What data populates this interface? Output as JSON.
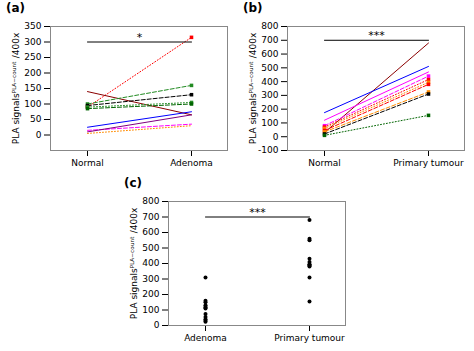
{
  "chart_data": [
    {
      "type": "line",
      "title": "(a)",
      "categories": [
        "Normal",
        "Adenoma"
      ],
      "ylabel": "PLA signalsᴾᴸᴬ⁻ᶜᵒᵘⁿᵗ /400x",
      "ylim": [
        -50,
        350
      ],
      "yticks": [
        0,
        50,
        100,
        150,
        200,
        250,
        300,
        350
      ],
      "annotations": [
        {
          "text": "*",
          "y": 300
        }
      ],
      "series": [
        {
          "color": "#ff0000",
          "line_style": "dotted",
          "marker": "square",
          "values": [
            90,
            315
          ]
        },
        {
          "color": "#8B0000",
          "line_style": "solid",
          "marker": "none",
          "values": [
            140,
            65
          ]
        },
        {
          "color": "#228B22",
          "line_style": "dashed",
          "marker": "square",
          "values": [
            100,
            160
          ]
        },
        {
          "color": "#000000",
          "line_style": "dashed",
          "marker": "square",
          "values": [
            95,
            130
          ]
        },
        {
          "color": "#228B22",
          "line_style": "dotted",
          "marker": "square",
          "values": [
            90,
            105
          ]
        },
        {
          "color": "#006400",
          "line_style": "dashed",
          "marker": "square",
          "values": [
            85,
            100
          ]
        },
        {
          "color": "#0000ff",
          "line_style": "solid",
          "marker": "none",
          "values": [
            25,
            75
          ]
        },
        {
          "color": "#ff00ff",
          "line_style": "dashed",
          "marker": "none",
          "values": [
            15,
            35
          ]
        },
        {
          "color": "#800080",
          "line_style": "solid",
          "marker": "none",
          "values": [
            10,
            65
          ]
        },
        {
          "color": "#ff8c00",
          "line_style": "dotted",
          "marker": "none",
          "values": [
            5,
            30
          ]
        }
      ]
    },
    {
      "type": "line",
      "title": "(b)",
      "categories": [
        "Normal",
        "Primary tumour"
      ],
      "ylabel": "PLA signalsᴾᴸᴬ⁻ᶜᵒᵘⁿᵗ /400x",
      "ylim": [
        -100,
        800
      ],
      "yticks": [
        -100,
        0,
        100,
        200,
        300,
        400,
        500,
        600,
        700,
        800
      ],
      "annotations": [
        {
          "text": "***",
          "y": 700
        }
      ],
      "series": [
        {
          "color": "#8B0000",
          "line_style": "solid",
          "marker": "none",
          "values": [
            30,
            680
          ]
        },
        {
          "color": "#0000ff",
          "line_style": "solid",
          "marker": "none",
          "values": [
            175,
            510
          ]
        },
        {
          "color": "#ff00ff",
          "line_style": "solid",
          "marker": "none",
          "values": [
            120,
            470
          ]
        },
        {
          "color": "#ff00ff",
          "line_style": "dashed",
          "marker": "square",
          "values": [
            80,
            440
          ]
        },
        {
          "color": "#ff0000",
          "line_style": "dotted",
          "marker": "square",
          "values": [
            70,
            415
          ]
        },
        {
          "color": "#ff8c00",
          "line_style": "dotted",
          "marker": "square",
          "values": [
            60,
            395
          ]
        },
        {
          "color": "#ff0000",
          "line_style": "dashed",
          "marker": "square",
          "values": [
            45,
            380
          ]
        },
        {
          "color": "#ff8c00",
          "line_style": "dashed",
          "marker": "square",
          "values": [
            35,
            325
          ]
        },
        {
          "color": "#000000",
          "line_style": "dashed",
          "marker": "square",
          "values": [
            20,
            310
          ]
        },
        {
          "color": "#006400",
          "line_style": "dotted",
          "marker": "square",
          "values": [
            10,
            155
          ]
        }
      ]
    },
    {
      "type": "scatter",
      "title": "(c)",
      "categories": [
        "Adenoma",
        "Primary tumour"
      ],
      "ylabel": "PLA signalsᴾᴸᴬ⁻ᶜᵒᵘⁿᵗ /400x",
      "ylim": [
        0,
        800
      ],
      "yticks": [
        0,
        100,
        200,
        300,
        400,
        500,
        600,
        700,
        800
      ],
      "annotations": [
        {
          "text": "***",
          "y": 700
        }
      ],
      "color": "#000000",
      "values": [
        [
          310,
          160,
          150,
          130,
          120,
          115,
          110,
          75,
          55,
          40,
          30,
          25
        ],
        [
          680,
          560,
          550,
          430,
          410,
          395,
          390,
          385,
          380,
          310,
          155
        ]
      ]
    }
  ]
}
